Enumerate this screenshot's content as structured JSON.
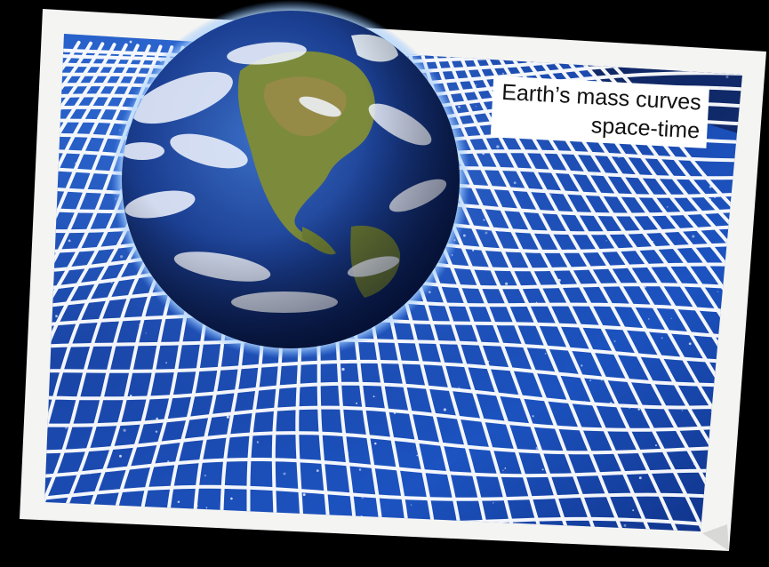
{
  "caption": {
    "line1": "Earth’s mass curves",
    "line2": "space-time"
  },
  "colors": {
    "background": "#000000",
    "photo_border": "#f4f4f2",
    "space_deep": "#0b1a5a",
    "space_mid": "#1e4fb8",
    "space_light": "#5aa0ff",
    "grid_line": "#ffffff",
    "earth_ocean": "#1a3f8f",
    "earth_land": "#7a8a3a",
    "earth_cloud": "#f0f4ff"
  },
  "scene": {
    "subject": "earth-icon",
    "grid": "curved-grid-icon"
  }
}
